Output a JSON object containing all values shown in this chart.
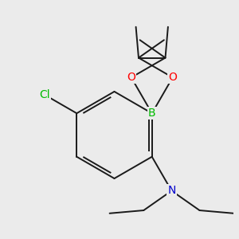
{
  "background_color": "#ebebeb",
  "bond_color": "#1a1a1a",
  "atom_colors": {
    "O": "#ff0000",
    "B": "#00bb00",
    "Cl": "#00bb00",
    "N": "#0000cc"
  },
  "font_size_atoms": 10,
  "fig_size": [
    3.0,
    3.0
  ],
  "dpi": 100
}
